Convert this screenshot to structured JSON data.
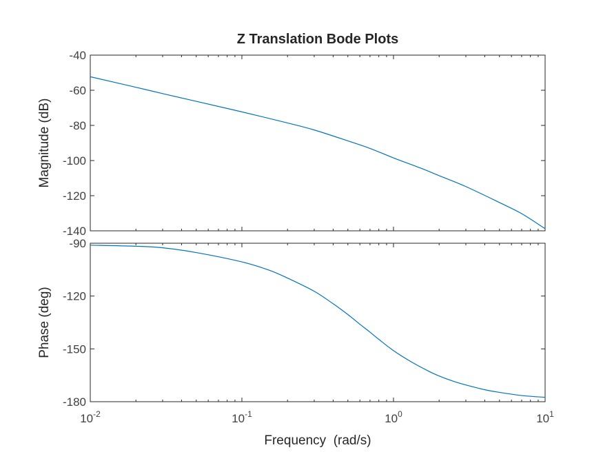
{
  "chart_data": [
    {
      "type": "line",
      "title": "Z Translation Bode Plots",
      "xlabel": "",
      "ylabel": "Magnitude (dB)",
      "xscale": "log",
      "xlim": [
        0.01,
        10
      ],
      "ylim": [
        -140,
        -40
      ],
      "yticks": [
        "-40",
        "-60",
        "-80",
        "-100",
        "-120",
        "-140"
      ],
      "grid": false,
      "series": [
        {
          "color": "#0072BD",
          "x": [
            0.01,
            0.02,
            0.03,
            0.05,
            0.1,
            0.2,
            0.3,
            0.5,
            0.7,
            1,
            1.5,
            2,
            3,
            5,
            7,
            10
          ],
          "y": [
            -52.3,
            -58.3,
            -61.9,
            -66.3,
            -72.3,
            -78.6,
            -82.6,
            -88.8,
            -93.1,
            -98.5,
            -104.2,
            -108.6,
            -114.8,
            -123.9,
            -130.2,
            -138.8
          ]
        }
      ]
    },
    {
      "type": "line",
      "title": "",
      "xlabel": "Frequency  (rad/s)",
      "ylabel": "Phase (deg)",
      "xscale": "log",
      "xlim": [
        0.01,
        10
      ],
      "ylim": [
        -180,
        -90
      ],
      "yticks": [
        "-90",
        "-120",
        "-150",
        "-180"
      ],
      "xticks": [
        {
          "base": "10",
          "exp": "-2"
        },
        {
          "base": "10",
          "exp": "-1"
        },
        {
          "base": "10",
          "exp": "0"
        },
        {
          "base": "10",
          "exp": "1"
        }
      ],
      "grid": false,
      "series": [
        {
          "color": "#0072BD",
          "x": [
            0.01,
            0.02,
            0.03,
            0.05,
            0.1,
            0.15,
            0.2,
            0.3,
            0.4,
            0.5,
            0.6,
            0.7,
            0.8,
            1,
            1.3,
            1.7,
            2,
            2.5,
            3,
            4,
            5,
            7,
            10
          ],
          "y": [
            -91.1,
            -91.7,
            -92.6,
            -95.3,
            -100.6,
            -105.2,
            -109.8,
            -117.3,
            -124.4,
            -130.5,
            -136.0,
            -140.5,
            -144.6,
            -151.0,
            -157.2,
            -162.6,
            -165.4,
            -168.5,
            -170.5,
            -173.2,
            -174.7,
            -176.5,
            -177.5
          ]
        }
      ]
    }
  ]
}
